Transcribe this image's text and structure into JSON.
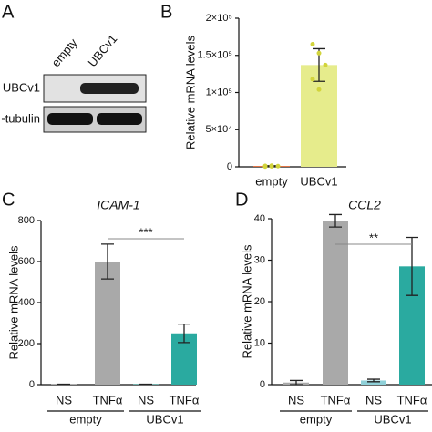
{
  "blot": {
    "label": "A",
    "lanes": [
      "empty",
      "UBCv1"
    ],
    "rows": [
      "UBCv1",
      "-tubulin"
    ]
  },
  "chart_data": [
    {
      "type": "bar",
      "label": "B",
      "ylabel": "Relative mRNA levels",
      "categories": [
        "empty",
        "UBCv1"
      ],
      "values": [
        1000,
        137000
      ],
      "errors": [
        500,
        22000
      ],
      "colors": [
        "#e8622a",
        "#e6ec8c"
      ],
      "point_color": "#d2d43c",
      "points": [
        [
          300,
          600,
          900,
          1200,
          1500
        ],
        [
          165000,
          153000,
          137000,
          118000,
          104000
        ]
      ],
      "ylim": [
        0,
        200000
      ],
      "yticks": [
        0,
        {
          "value": 50000,
          "label": "5×10⁴"
        },
        {
          "value": 100000,
          "label": "1×10⁵"
        },
        {
          "value": 150000,
          "label": "1.5×10⁵"
        },
        {
          "value": 200000,
          "label": "2×10⁵"
        }
      ]
    },
    {
      "type": "bar",
      "label": "C",
      "title": "ICAM-1",
      "ylabel": "Relative mRNA levels",
      "categories": [
        "NS",
        "TNFα",
        "NS",
        "TNFα"
      ],
      "groups": [
        "empty",
        "UBCv1"
      ],
      "values": [
        2,
        600,
        2,
        250
      ],
      "errors": [
        0,
        85,
        0,
        45
      ],
      "colors": [
        "#a9a9a9",
        "#a9a9a9",
        "#2aaaa0",
        "#2aaaa0"
      ],
      "annotation": "***",
      "ylim": [
        0,
        800
      ],
      "yticks": [
        0,
        200,
        400,
        600,
        800
      ]
    },
    {
      "type": "bar",
      "label": "D",
      "title": "CCL2",
      "ylabel": "Relative mRNA levels",
      "categories": [
        "NS",
        "TNFα",
        "NS",
        "TNFα"
      ],
      "groups": [
        "empty",
        "UBCv1"
      ],
      "values": [
        0.5,
        39.5,
        1,
        28.5
      ],
      "errors": [
        0.5,
        1.5,
        0.3,
        7
      ],
      "colors": [
        "#a9a9a9",
        "#a9a9a9",
        "#8fd0d8",
        "#2aaaa0"
      ],
      "annotation": "**",
      "ylim": [
        0,
        40
      ],
      "yticks": [
        0,
        10,
        20,
        30,
        40
      ]
    }
  ]
}
